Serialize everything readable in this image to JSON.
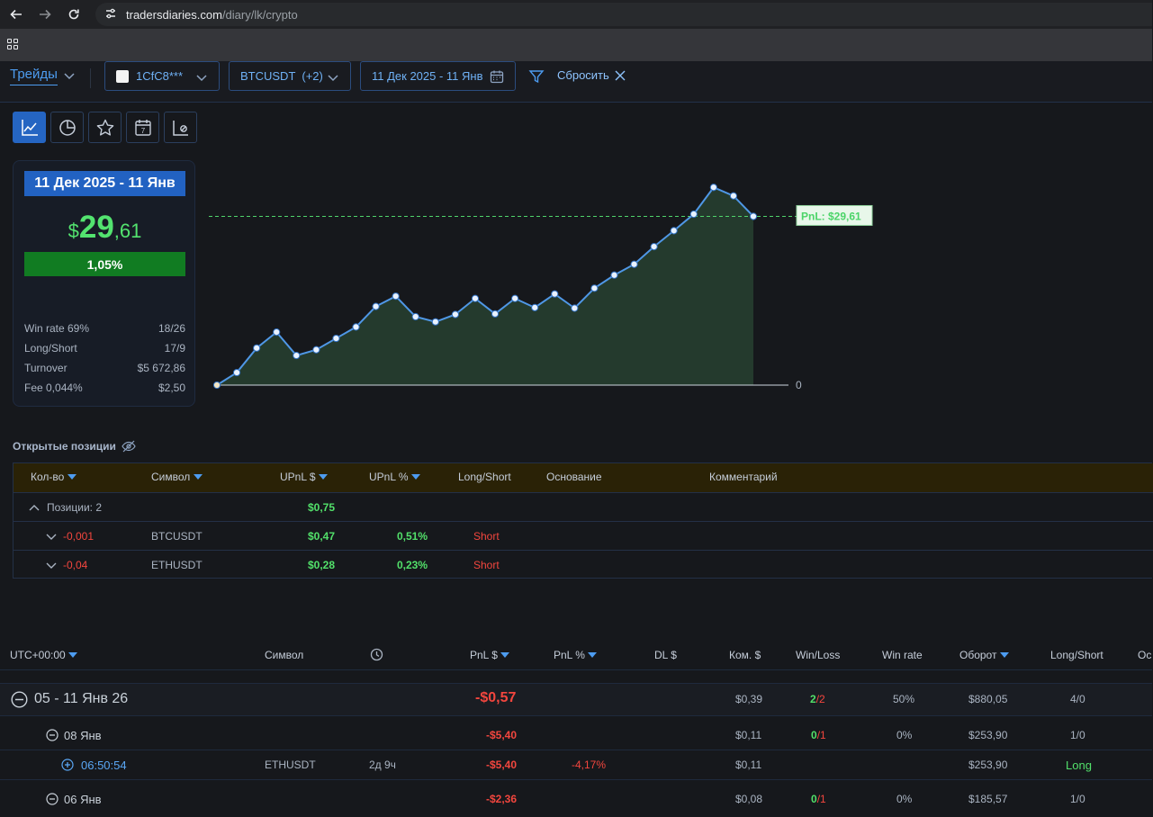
{
  "browser": {
    "url_host": "tradersdiaries.com",
    "url_path": "/diary/lk/crypto"
  },
  "toolbar": {
    "tab_label": "Трейды",
    "account_label": "1CfC8***",
    "symbol_label": "BTCUSDT  (+2)",
    "date_range": "11 Дек 2025 - 11 Янв",
    "reset_label": "Сбросить"
  },
  "summary": {
    "date_range": "11 Дек 2025 - 11 Янв",
    "currency": "$",
    "pnl_int": "29",
    "pnl_dec": ",61",
    "pnl_pct": "1,05%",
    "pnl_pct_value": 1.05,
    "stats": [
      {
        "label": "Win rate 69%",
        "value": "18/26"
      },
      {
        "label": "Long/Short",
        "value": "17/9"
      },
      {
        "label": "Turnover",
        "value": "$5 672,86"
      },
      {
        "label": "Fee 0,044%",
        "value": "$2,50"
      }
    ]
  },
  "chart_data": {
    "type": "area",
    "pnl_label": "PnL: $29,61",
    "zero_label": "0",
    "y": [
      0.0,
      2.2,
      6.5,
      9.3,
      5.2,
      6.2,
      8.2,
      10.2,
      13.8,
      15.6,
      12.0,
      11.1,
      12.4,
      15.2,
      12.5,
      15.2,
      13.6,
      16.0,
      13.5,
      17.0,
      19.3,
      21.2,
      24.3,
      27.1,
      30.0,
      34.7,
      33.2,
      29.61
    ],
    "ylim": [
      0,
      36
    ],
    "colors": {
      "line": "#4f97e6",
      "fill": "#243a2d",
      "ref_line": "#4fd36a"
    }
  },
  "open_positions": {
    "title": "Открытые позиции",
    "headers": [
      "Кол-во",
      "Символ",
      "UPnL $",
      "UPnL %",
      "Long/Short",
      "Основание",
      "Комментарий"
    ],
    "group": {
      "label": "Позиции: 2",
      "upnl": "$0,75"
    },
    "rows": [
      {
        "qty": "-0,001",
        "symbol": "BTCUSDT",
        "upnl": "$0,47",
        "upnl_pct": "0,51%",
        "side": "Short"
      },
      {
        "qty": "-0,04",
        "symbol": "ETHUSDT",
        "upnl": "$0,28",
        "upnl_pct": "0,23%",
        "side": "Short"
      }
    ]
  },
  "trades": {
    "headers": {
      "time": "UTC+00:00",
      "symbol": "Символ",
      "pnl": "PnL $",
      "pnl_pct": "PnL %",
      "dl": "DL $",
      "fee": "Ком. $",
      "winloss": "Win/Loss",
      "winrate": "Win rate",
      "turnover": "Оборот",
      "longshort": "Long/Short",
      "basis": "Ос"
    },
    "week": {
      "label": "05 - 11 Янв 26",
      "pnl": "-$0,57",
      "fee": "$0,39",
      "win": "2",
      "loss": "/2",
      "winrate": "50%",
      "turnover": "$880,05",
      "ls": "4/0"
    },
    "day1": {
      "label": "08 Янв",
      "pnl": "-$5,40",
      "fee": "$0,11",
      "win": "0",
      "loss": "/1",
      "winrate": "0%",
      "turnover": "$253,90",
      "ls": "1/0"
    },
    "trade1": {
      "time": "06:50:54",
      "symbol": "ETHUSDT",
      "duration": "2д 9ч",
      "pnl": "-$5,40",
      "pnl_pct": "-4,17%",
      "fee": "$0,11",
      "turnover": "$253,90",
      "side": "Long"
    },
    "day2": {
      "label": "06 Янв",
      "pnl": "-$2,36",
      "fee": "$0,08",
      "win": "0",
      "loss": "/1",
      "winrate": "0%",
      "turnover": "$185,57",
      "ls": "1/0"
    }
  }
}
